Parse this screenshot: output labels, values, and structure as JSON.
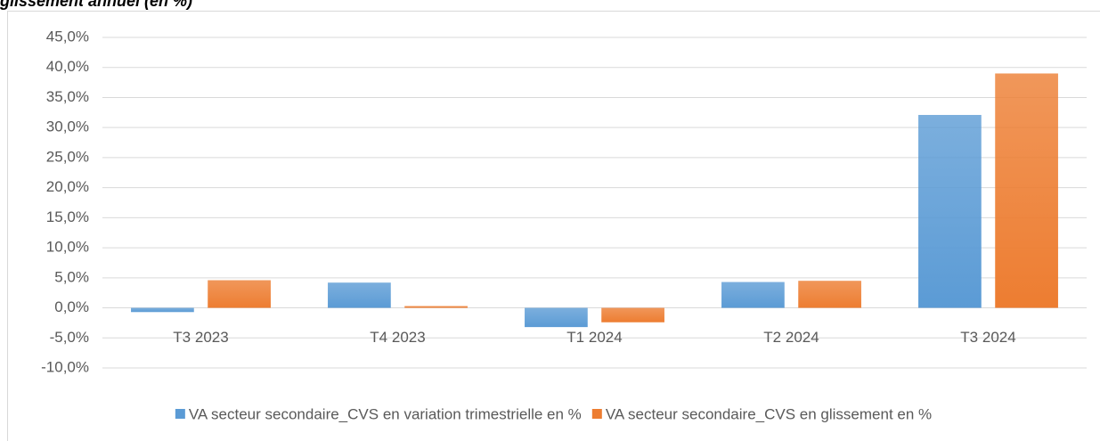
{
  "chart_data": {
    "type": "bar",
    "title": "glissement annuel (en %)",
    "categories": [
      "T3 2023",
      "T4 2023",
      "T1 2024",
      "T2 2024",
      "T3 2024"
    ],
    "series": [
      {
        "name": "VA secteur secondaire_CVS en variation trimestrielle en %",
        "color": "#5b9bd5",
        "values": [
          -0.7,
          4.2,
          -3.2,
          4.3,
          32.1
        ]
      },
      {
        "name": "VA secteur secondaire_CVS en glissement en %",
        "color": "#ed7d31",
        "values": [
          4.6,
          0.3,
          -2.4,
          4.5,
          39.0
        ]
      }
    ],
    "ylim": [
      -10,
      45
    ],
    "yticks": [
      {
        "value": -10,
        "label": "-10,0%"
      },
      {
        "value": -5,
        "label": "-5,0%"
      },
      {
        "value": 0,
        "label": "0,0%"
      },
      {
        "value": 5,
        "label": "5,0%"
      },
      {
        "value": 10,
        "label": "10,0%"
      },
      {
        "value": 15,
        "label": "15,0%"
      },
      {
        "value": 20,
        "label": "20,0%"
      },
      {
        "value": 25,
        "label": "25,0%"
      },
      {
        "value": 30,
        "label": "30,0%"
      },
      {
        "value": 35,
        "label": "35,0%"
      },
      {
        "value": 40,
        "label": "40,0%"
      },
      {
        "value": 45,
        "label": "45,0%"
      }
    ],
    "grid": true,
    "legend": "bottom"
  }
}
